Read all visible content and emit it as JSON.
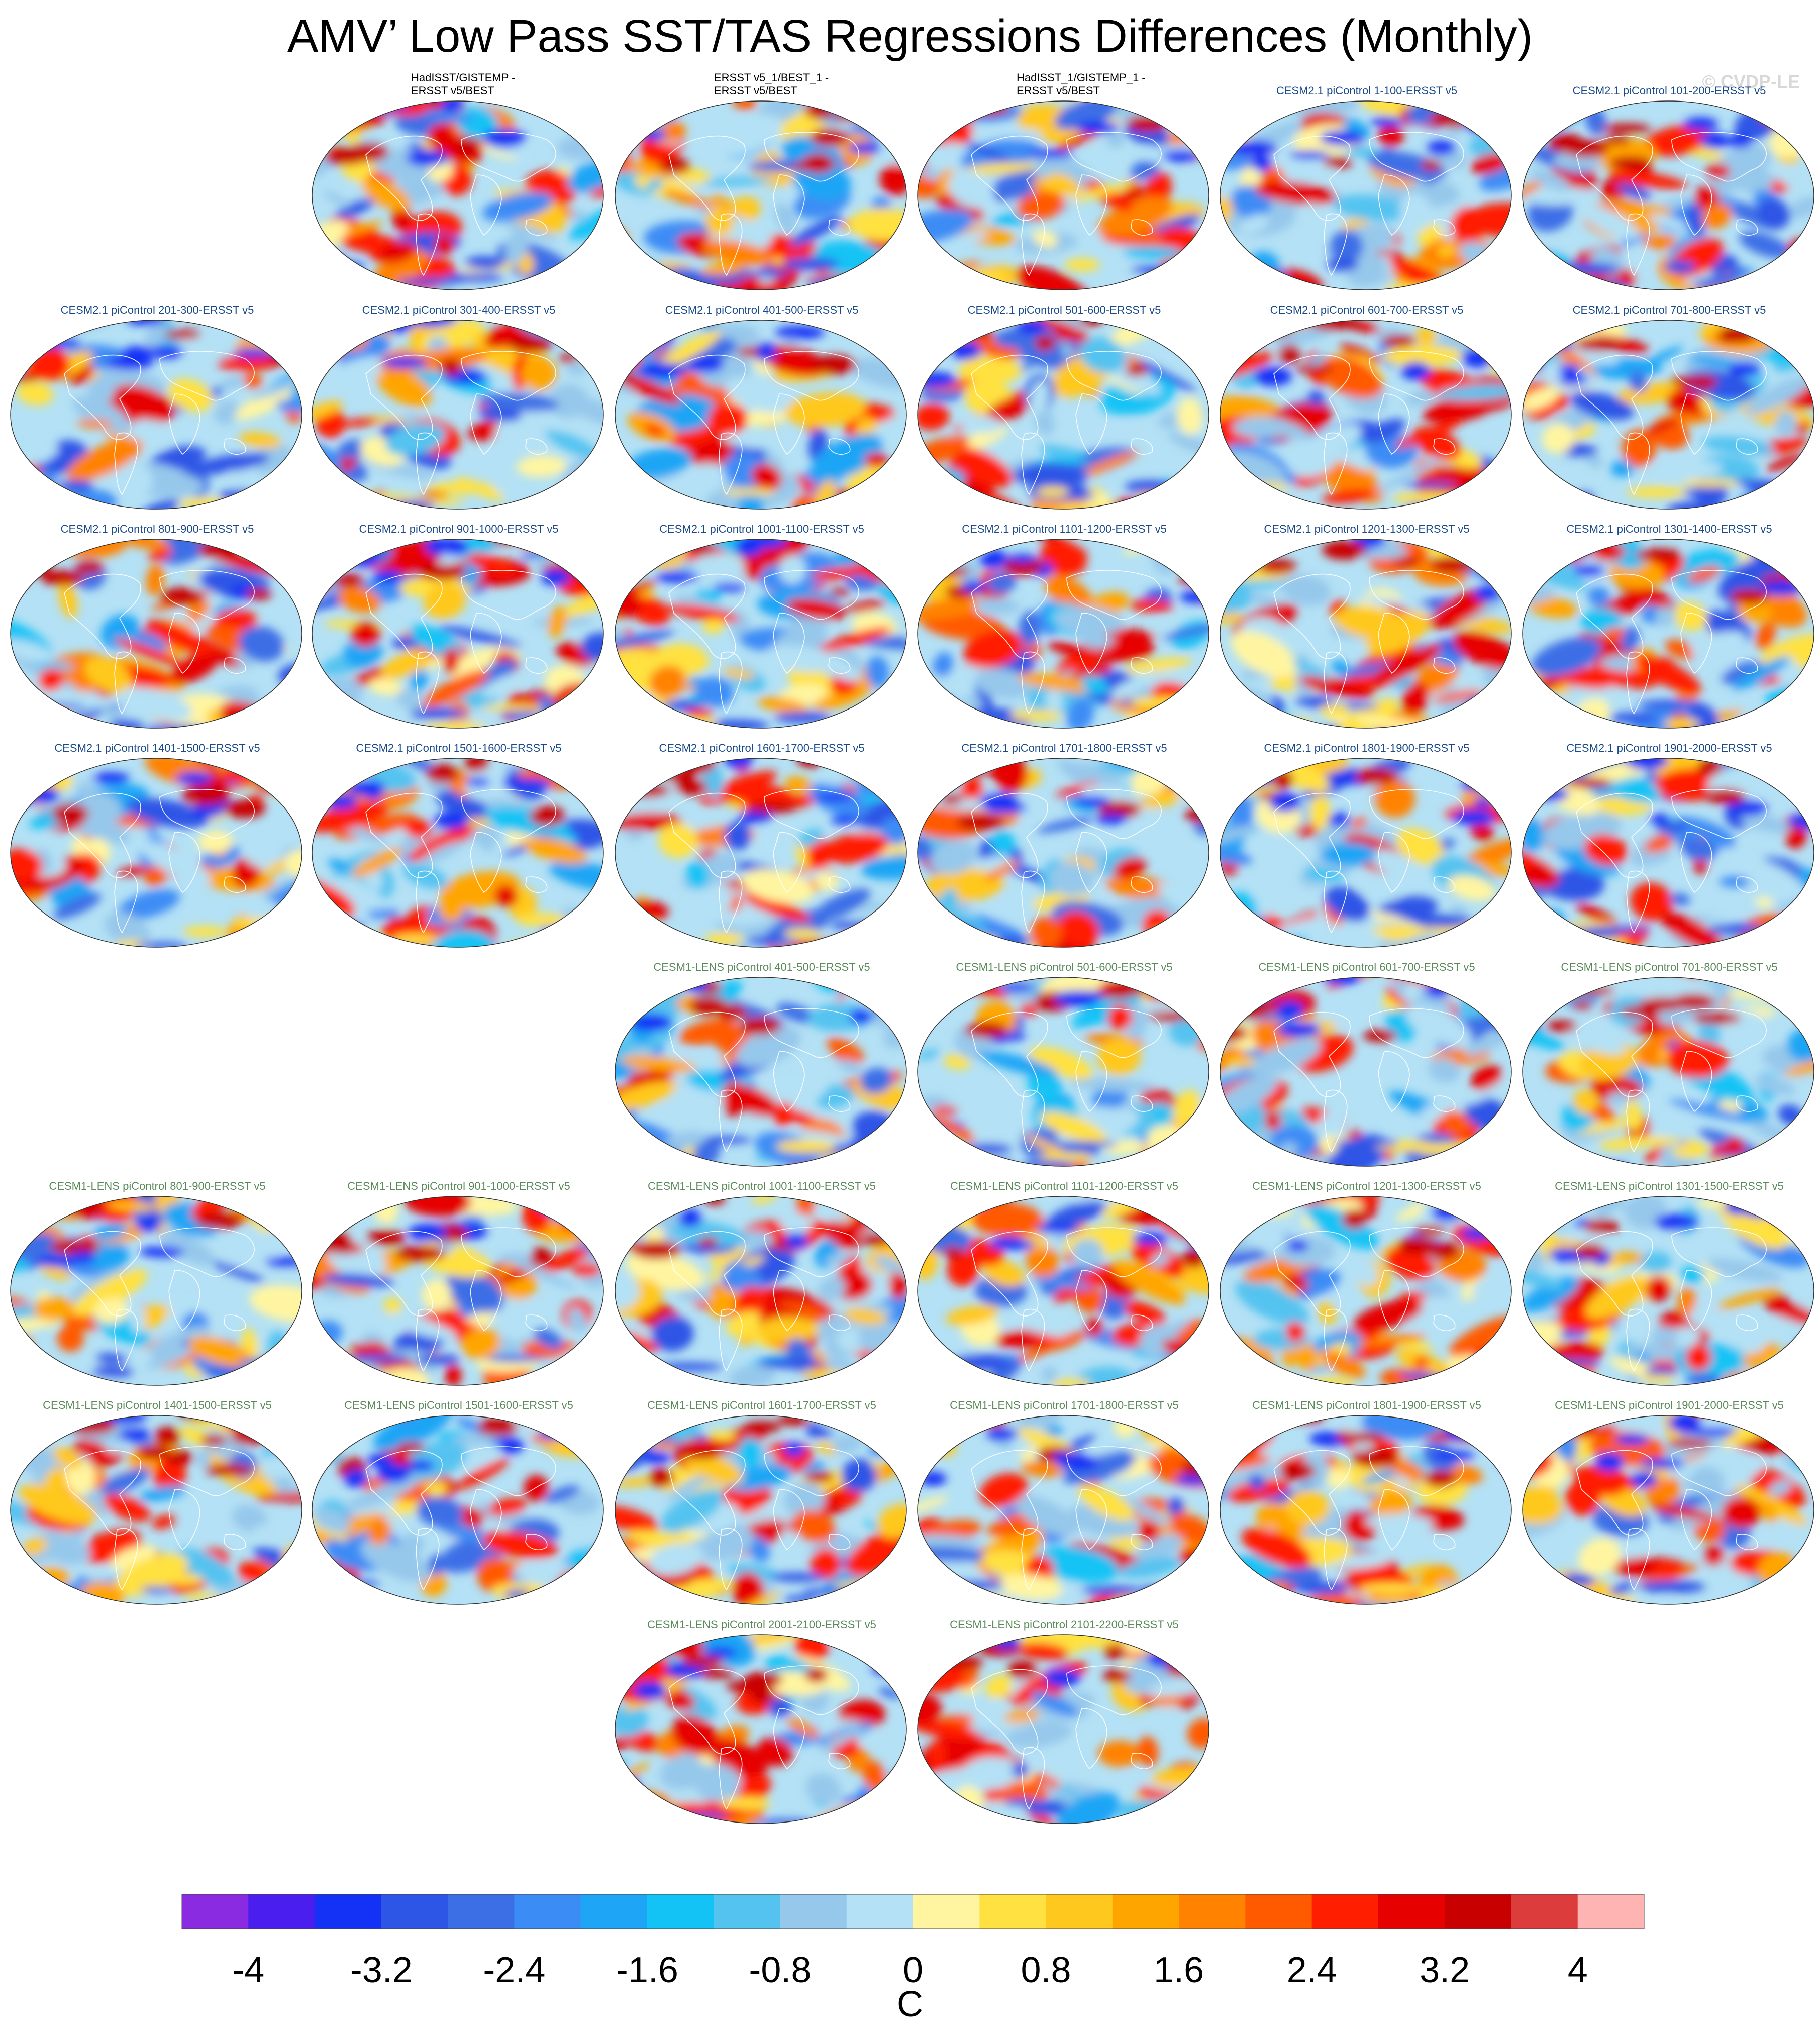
{
  "title": "AMV’ Low Pass SST/TAS Regressions Differences (Monthly)",
  "watermark": "© CVDP-LE",
  "colorbar": {
    "units": "C",
    "colors": [
      "#8a2be2",
      "#4b1ef0",
      "#1432f5",
      "#2d55e6",
      "#3c6ee6",
      "#3c8cf5",
      "#1ea5f5",
      "#14c3f5",
      "#55c3f0",
      "#96c8eb",
      "#b4e1f5",
      "#fff5a0",
      "#ffe141",
      "#ffc81e",
      "#ffa500",
      "#ff8200",
      "#ff5a00",
      "#ff1e00",
      "#e60000",
      "#c80000",
      "#dc3c3c",
      "#ffb4b4"
    ],
    "tick_labels": [
      "-4",
      "-3.2",
      "-2.4",
      "-1.6",
      "-0.8",
      "0",
      "0.8",
      "1.6",
      "2.4",
      "3.2",
      "4"
    ],
    "tick_values": [
      -4,
      -3.2,
      -2.4,
      -1.6,
      -0.8,
      0,
      0.8,
      1.6,
      2.4,
      3.2,
      4
    ]
  },
  "panels": [
    {
      "id": "p0",
      "row": 0,
      "col": 1,
      "group": "obs",
      "title1": "HadISST/GISTEMP -",
      "title2": "ERSST v5/BEST",
      "warm": 0.45,
      "cold": 0.3
    },
    {
      "id": "p1",
      "row": 0,
      "col": 2,
      "group": "obs",
      "title1": "ERSST v5_1/BEST_1 -",
      "title2": "ERSST v5/BEST",
      "warm": 0.75,
      "cold": 0.4
    },
    {
      "id": "p2",
      "row": 0,
      "col": 3,
      "group": "obs",
      "title1": "HadISST_1/GISTEMP_1 -",
      "title2": "ERSST v5/BEST",
      "warm": 0.75,
      "cold": 0.4
    },
    {
      "id": "p3",
      "row": 0,
      "col": 4,
      "group": "c2",
      "title1": "CESM2.1 piControl 1-100-ERSST v5",
      "title2": "",
      "warm": 0.6,
      "cold": 0.5
    },
    {
      "id": "p4",
      "row": 0,
      "col": 5,
      "group": "c2",
      "title1": "CESM2.1 piControl 101-200-ERSST v5",
      "title2": "",
      "warm": 0.6,
      "cold": 0.45
    },
    {
      "id": "p5",
      "row": 1,
      "col": 0,
      "group": "c2",
      "title1": "CESM2.1 piControl 201-300-ERSST v5",
      "title2": "",
      "warm": 0.6,
      "cold": 0.55
    },
    {
      "id": "p6",
      "row": 1,
      "col": 1,
      "group": "c2",
      "title1": "CESM2.1 piControl 301-400-ERSST v5",
      "title2": "",
      "warm": 0.6,
      "cold": 0.55
    },
    {
      "id": "p7",
      "row": 1,
      "col": 2,
      "group": "c2",
      "title1": "CESM2.1 piControl 401-500-ERSST v5",
      "title2": "",
      "warm": 0.6,
      "cold": 0.6
    },
    {
      "id": "p8",
      "row": 1,
      "col": 3,
      "group": "c2",
      "title1": "CESM2.1 piControl 501-600-ERSST v5",
      "title2": "",
      "warm": 0.65,
      "cold": 0.55
    },
    {
      "id": "p9",
      "row": 1,
      "col": 4,
      "group": "c2",
      "title1": "CESM2.1 piControl 601-700-ERSST v5",
      "title2": "",
      "warm": 0.6,
      "cold": 0.6
    },
    {
      "id": "p10",
      "row": 1,
      "col": 5,
      "group": "c2",
      "title1": "CESM2.1 piControl 701-800-ERSST v5",
      "title2": "",
      "warm": 0.6,
      "cold": 0.7
    },
    {
      "id": "p11",
      "row": 2,
      "col": 0,
      "group": "c2",
      "title1": "CESM2.1 piControl 801-900-ERSST v5",
      "title2": "",
      "warm": 0.65,
      "cold": 0.55
    },
    {
      "id": "p12",
      "row": 2,
      "col": 1,
      "group": "c2",
      "title1": "CESM2.1 piControl 901-1000-ERSST v5",
      "title2": "",
      "warm": 0.55,
      "cold": 0.6
    },
    {
      "id": "p13",
      "row": 2,
      "col": 2,
      "group": "c2",
      "title1": "CESM2.1 piControl 1001-1100-ERSST v5",
      "title2": "",
      "warm": 0.6,
      "cold": 0.6
    },
    {
      "id": "p14",
      "row": 2,
      "col": 3,
      "group": "c2",
      "title1": "CESM2.1 piControl 1101-1200-ERSST v5",
      "title2": "",
      "warm": 0.55,
      "cold": 0.55
    },
    {
      "id": "p15",
      "row": 2,
      "col": 4,
      "group": "c2",
      "title1": "CESM2.1 piControl 1201-1300-ERSST v5",
      "title2": "",
      "warm": 0.55,
      "cold": 0.55
    },
    {
      "id": "p16",
      "row": 2,
      "col": 5,
      "group": "c2",
      "title1": "CESM2.1 piControl 1301-1400-ERSST v5",
      "title2": "",
      "warm": 0.5,
      "cold": 0.55
    },
    {
      "id": "p17",
      "row": 3,
      "col": 0,
      "group": "c2",
      "title1": "CESM2.1 piControl 1401-1500-ERSST v5",
      "title2": "",
      "warm": 0.6,
      "cold": 0.65
    },
    {
      "id": "p18",
      "row": 3,
      "col": 1,
      "group": "c2",
      "title1": "CESM2.1 piControl 1501-1600-ERSST v5",
      "title2": "",
      "warm": 0.6,
      "cold": 0.6
    },
    {
      "id": "p19",
      "row": 3,
      "col": 2,
      "group": "c2",
      "title1": "CESM2.1 piControl 1601-1700-ERSST v5",
      "title2": "",
      "warm": 0.55,
      "cold": 0.5
    },
    {
      "id": "p20",
      "row": 3,
      "col": 3,
      "group": "c2",
      "title1": "CESM2.1 piControl 1701-1800-ERSST v5",
      "title2": "",
      "warm": 0.55,
      "cold": 0.6
    },
    {
      "id": "p21",
      "row": 3,
      "col": 4,
      "group": "c2",
      "title1": "CESM2.1 piControl 1801-1900-ERSST v5",
      "title2": "",
      "warm": 0.6,
      "cold": 0.6
    },
    {
      "id": "p22",
      "row": 3,
      "col": 5,
      "group": "c2",
      "title1": "CESM2.1 piControl 1901-2000-ERSST v5",
      "title2": "",
      "warm": 0.6,
      "cold": 0.7
    },
    {
      "id": "p23",
      "row": 4,
      "col": 2,
      "group": "c1",
      "title1": "CESM1-LENS piControl 401-500-ERSST v5",
      "title2": "",
      "warm": 0.6,
      "cold": 0.65
    },
    {
      "id": "p24",
      "row": 4,
      "col": 3,
      "group": "c1",
      "title1": "CESM1-LENS piControl 501-600-ERSST v5",
      "title2": "",
      "warm": 0.6,
      "cold": 0.75
    },
    {
      "id": "p25",
      "row": 4,
      "col": 4,
      "group": "c1",
      "title1": "CESM1-LENS piControl 601-700-ERSST v5",
      "title2": "",
      "warm": 0.55,
      "cold": 0.7
    },
    {
      "id": "p26",
      "row": 4,
      "col": 5,
      "group": "c1",
      "title1": "CESM1-LENS piControl 701-800-ERSST v5",
      "title2": "",
      "warm": 0.6,
      "cold": 0.75
    },
    {
      "id": "p27",
      "row": 5,
      "col": 0,
      "group": "c1",
      "title1": "CESM1-LENS piControl 801-900-ERSST v5",
      "title2": "",
      "warm": 0.6,
      "cold": 0.7
    },
    {
      "id": "p28",
      "row": 5,
      "col": 1,
      "group": "c1",
      "title1": "CESM1-LENS piControl 901-1000-ERSST v5",
      "title2": "",
      "warm": 0.55,
      "cold": 0.6
    },
    {
      "id": "p29",
      "row": 5,
      "col": 2,
      "group": "c1",
      "title1": "CESM1-LENS piControl 1001-1100-ERSST v5",
      "title2": "",
      "warm": 0.55,
      "cold": 0.65
    },
    {
      "id": "p30",
      "row": 5,
      "col": 3,
      "group": "c1",
      "title1": "CESM1-LENS piControl 1101-1200-ERSST v5",
      "title2": "",
      "warm": 0.55,
      "cold": 0.7
    },
    {
      "id": "p31",
      "row": 5,
      "col": 4,
      "group": "c1",
      "title1": "CESM1-LENS piControl 1201-1300-ERSST v5",
      "title2": "",
      "warm": 0.6,
      "cold": 0.7
    },
    {
      "id": "p32",
      "row": 5,
      "col": 5,
      "group": "c1",
      "title1": "CESM1-LENS piControl 1301-1500-ERSST v5",
      "title2": "",
      "warm": 0.65,
      "cold": 0.75
    },
    {
      "id": "p33",
      "row": 6,
      "col": 0,
      "group": "c1",
      "title1": "CESM1-LENS piControl 1401-1500-ERSST v5",
      "title2": "",
      "warm": 0.6,
      "cold": 0.65
    },
    {
      "id": "p34",
      "row": 6,
      "col": 1,
      "group": "c1",
      "title1": "CESM1-LENS piControl 1501-1600-ERSST v5",
      "title2": "",
      "warm": 0.6,
      "cold": 0.6
    },
    {
      "id": "p35",
      "row": 6,
      "col": 2,
      "group": "c1",
      "title1": "CESM1-LENS piControl 1601-1700-ERSST v5",
      "title2": "",
      "warm": 0.6,
      "cold": 0.75
    },
    {
      "id": "p36",
      "row": 6,
      "col": 3,
      "group": "c1",
      "title1": "CESM1-LENS piControl 1701-1800-ERSST v5",
      "title2": "",
      "warm": 0.65,
      "cold": 0.55
    },
    {
      "id": "p37",
      "row": 6,
      "col": 4,
      "group": "c1",
      "title1": "CESM1-LENS piControl 1801-1900-ERSST v5",
      "title2": "",
      "warm": 0.55,
      "cold": 0.65
    },
    {
      "id": "p38",
      "row": 6,
      "col": 5,
      "group": "c1",
      "title1": "CESM1-LENS piControl 1901-2000-ERSST v5",
      "title2": "",
      "warm": 0.6,
      "cold": 0.75
    },
    {
      "id": "p39",
      "row": 7,
      "col": 2,
      "group": "c1",
      "title1": "CESM1-LENS piControl 2001-2100-ERSST v5",
      "title2": "",
      "warm": 0.55,
      "cold": 0.55
    },
    {
      "id": "p40",
      "row": 7,
      "col": 3,
      "group": "c1",
      "title1": "CESM1-LENS piControl 2101-2200-ERSST v5",
      "title2": "",
      "warm": 0.55,
      "cold": 0.7
    }
  ]
}
